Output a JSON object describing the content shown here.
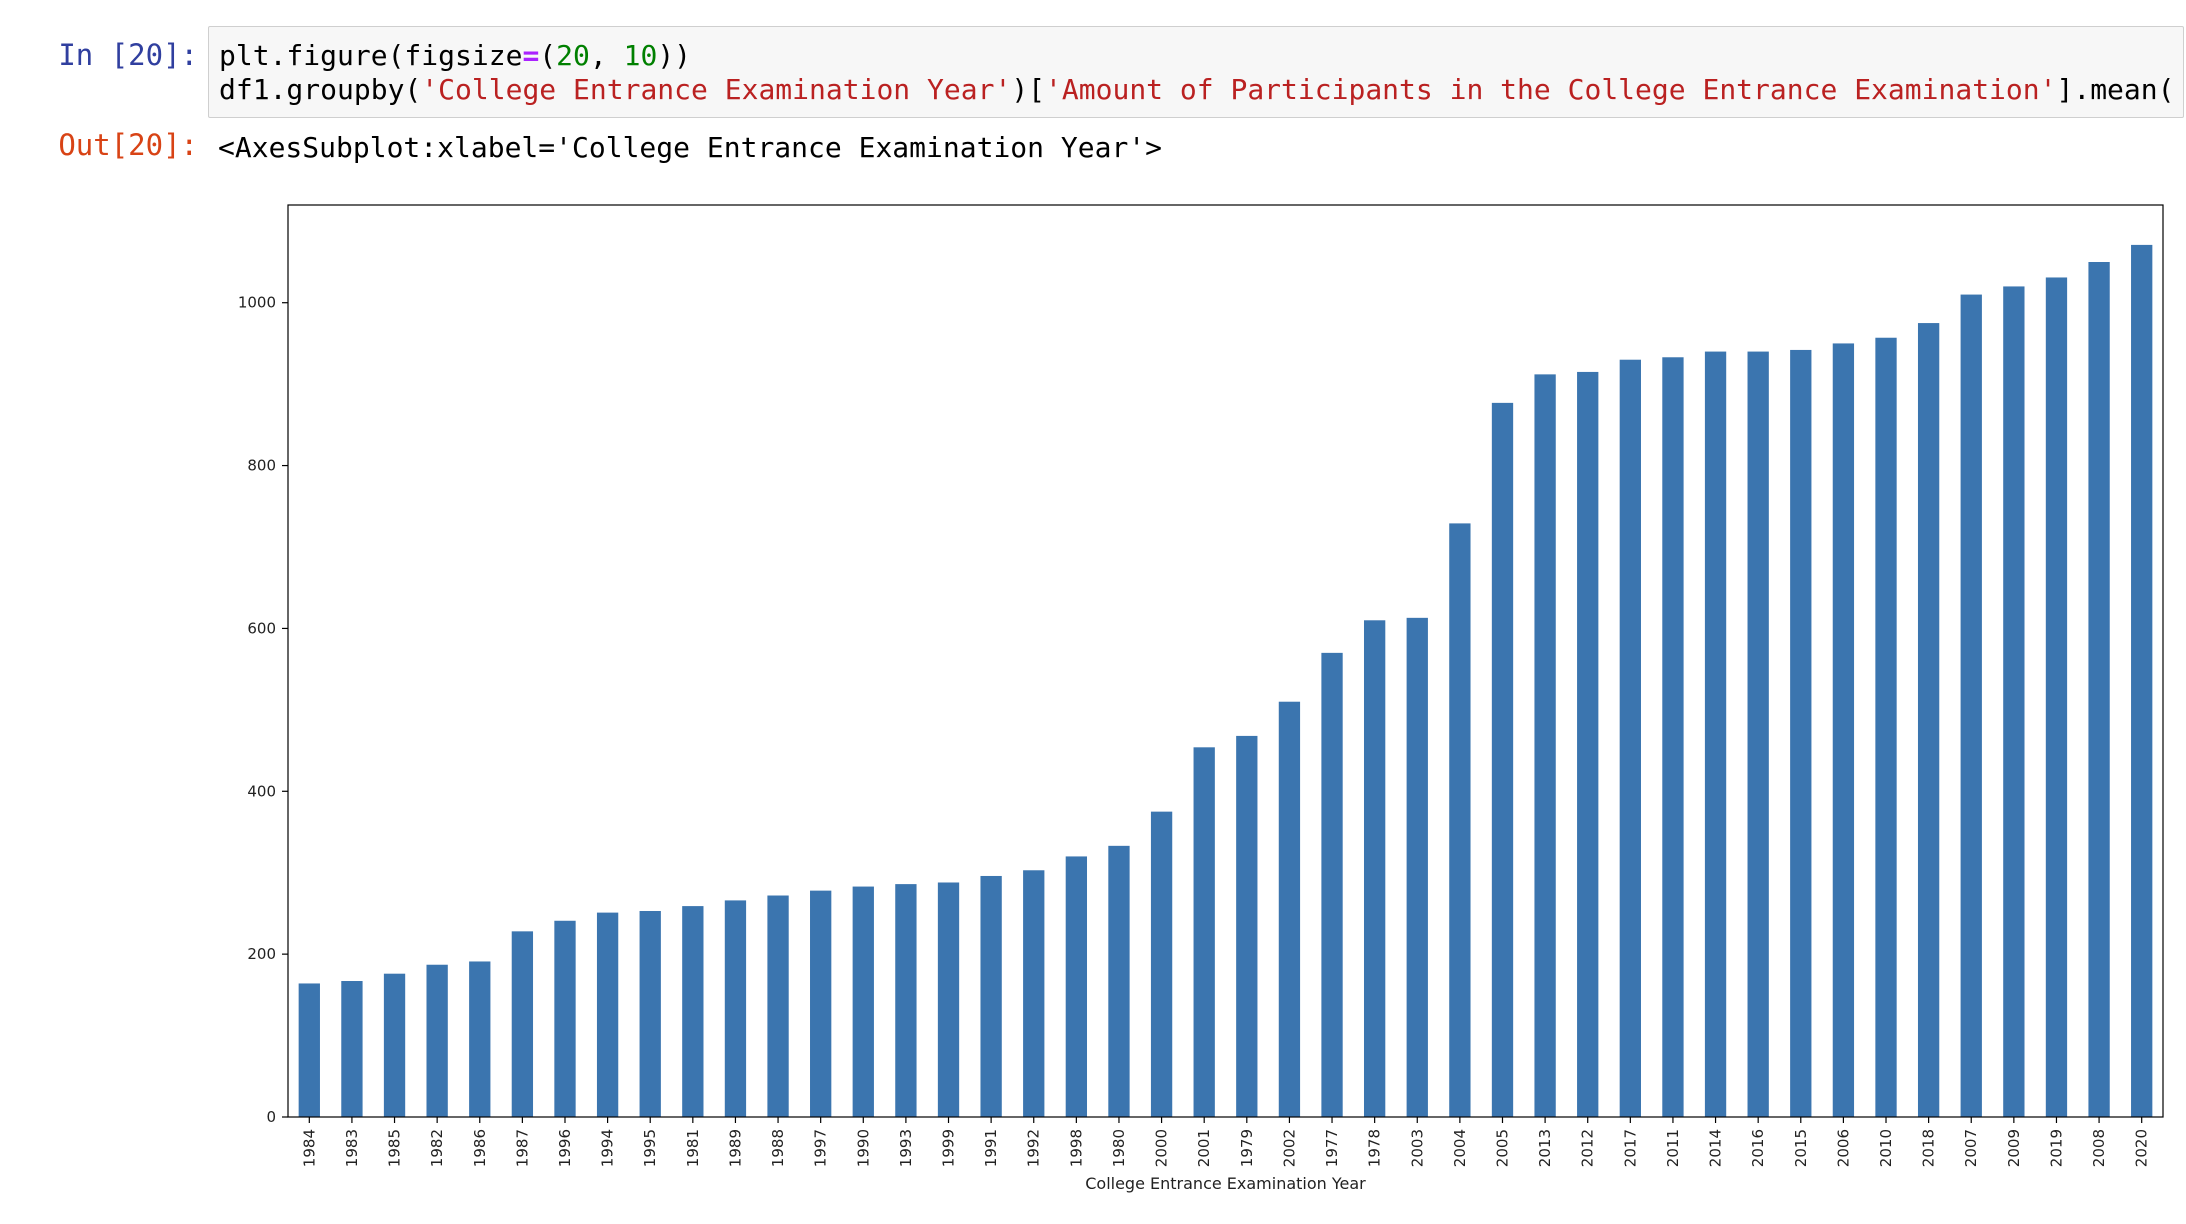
{
  "notebook": {
    "input_prompt": "In [20]:",
    "output_prompt": "Out[20]:",
    "code": {
      "line1": {
        "t1": "plt.figure(figsize",
        "t2": "=",
        "t3": "(",
        "t4": "20",
        "t5": ", ",
        "t6": "10",
        "t7": "))"
      },
      "line2": {
        "t1": "df1.groupby(",
        "t2": "'College Entrance Examination Year'",
        "t3": ")[",
        "t4": "'Amount of Participants in the College Entrance Examination'",
        "t5": "].mean("
      }
    },
    "output_text": "<AxesSubplot:xlabel='College Entrance Examination Year'>"
  },
  "colors": {
    "bar": "#3b75af",
    "axis": "#000000"
  },
  "chart_data": {
    "type": "bar",
    "xlabel": "College Entrance Examination Year",
    "ylabel": "",
    "ylim": [
      0,
      1120
    ],
    "yticks": [
      0,
      200,
      400,
      600,
      800,
      1000
    ],
    "grid": false,
    "categories": [
      "1984",
      "1983",
      "1985",
      "1982",
      "1986",
      "1987",
      "1996",
      "1994",
      "1995",
      "1981",
      "1989",
      "1988",
      "1997",
      "1990",
      "1993",
      "1999",
      "1991",
      "1992",
      "1998",
      "1980",
      "2000",
      "2001",
      "1979",
      "2002",
      "1977",
      "1978",
      "2003",
      "2004",
      "2005",
      "2013",
      "2012",
      "2017",
      "2011",
      "2014",
      "2016",
      "2015",
      "2006",
      "2010",
      "2018",
      "2007",
      "2009",
      "2019",
      "2008",
      "2020"
    ],
    "values": [
      164,
      167,
      176,
      187,
      191,
      228,
      241,
      251,
      253,
      259,
      266,
      272,
      278,
      283,
      286,
      288,
      296,
      303,
      320,
      333,
      375,
      454,
      468,
      510,
      570,
      610,
      613,
      729,
      877,
      912,
      915,
      930,
      933,
      940,
      940,
      942,
      950,
      957,
      975,
      1010,
      1020,
      1031,
      1050,
      1071
    ]
  }
}
